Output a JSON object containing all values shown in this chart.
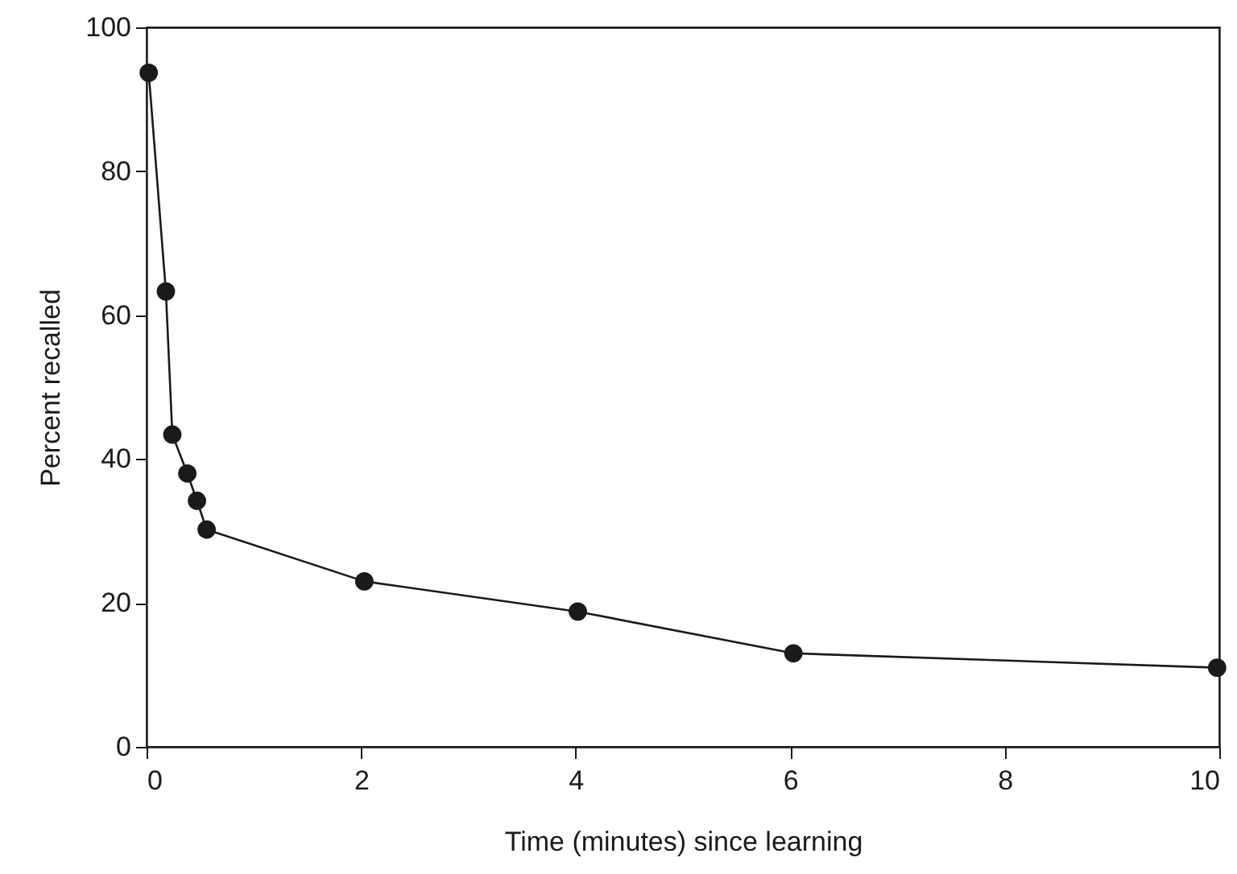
{
  "chart_data": {
    "type": "line",
    "xlabel": "Time (minutes) since learning",
    "ylabel": "Percent recalled",
    "x": [
      0.02,
      0.18,
      0.24,
      0.38,
      0.47,
      0.56,
      2.03,
      4.02,
      6.03,
      9.98
    ],
    "series": [
      {
        "color": "#1a1a1a",
        "values": [
          93.7,
          63.3,
          43.4,
          38.0,
          34.2,
          30.2,
          23.0,
          18.8,
          13.0,
          11.0
        ]
      }
    ],
    "xlim": [
      0,
      10
    ],
    "xticks": [
      0,
      2,
      4,
      6,
      8,
      10
    ],
    "ylim": [
      0,
      100
    ],
    "yticks": [
      0,
      20,
      40,
      60,
      80,
      100
    ],
    "grid": false,
    "marker": "circle",
    "line_style": "solid"
  }
}
